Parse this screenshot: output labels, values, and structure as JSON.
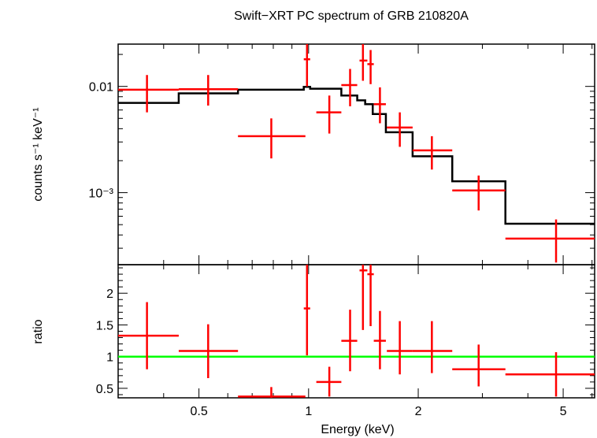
{
  "chart_data": [
    {
      "panel": "spectrum",
      "type": "scatter",
      "title": "Swift−XRT PC spectrum of GRB 210820A",
      "ylabel": "counts s⁻¹ keV⁻¹",
      "xlabel": "",
      "xscale": "log",
      "yscale": "log",
      "xlim": [
        0.3,
        6.1
      ],
      "ylim": [
        0.00021,
        0.025
      ],
      "y_tick_labels": [
        {
          "value": 0.01,
          "label": "0.01"
        },
        {
          "value": 0.001,
          "label": "10⁻³"
        }
      ],
      "colors": {
        "data": "#ff0000",
        "model": "#000000"
      },
      "data_points": [
        {
          "x": 0.36,
          "xlo": 0.3,
          "xhi": 0.44,
          "y": 0.0093,
          "ylo": 0.0057,
          "yhi": 0.0128
        },
        {
          "x": 0.53,
          "xlo": 0.44,
          "xhi": 0.64,
          "y": 0.0094,
          "ylo": 0.0066,
          "yhi": 0.0128
        },
        {
          "x": 0.79,
          "xlo": 0.64,
          "xhi": 0.98,
          "y": 0.0034,
          "ylo": 0.0021,
          "yhi": 0.005
        },
        {
          "x": 0.99,
          "xlo": 0.97,
          "xhi": 1.01,
          "y": 0.018,
          "ylo": 0.01,
          "yhi": 0.025
        },
        {
          "x": 1.14,
          "xlo": 1.05,
          "xhi": 1.23,
          "y": 0.0057,
          "ylo": 0.0036,
          "yhi": 0.0082
        },
        {
          "x": 1.3,
          "xlo": 1.23,
          "xhi": 1.36,
          "y": 0.0103,
          "ylo": 0.0065,
          "yhi": 0.0146
        },
        {
          "x": 1.41,
          "xlo": 1.38,
          "xhi": 1.45,
          "y": 0.0175,
          "ylo": 0.0113,
          "yhi": 0.025
        },
        {
          "x": 1.48,
          "xlo": 1.45,
          "xhi": 1.51,
          "y": 0.0162,
          "ylo": 0.0105,
          "yhi": 0.022
        },
        {
          "x": 1.57,
          "xlo": 1.51,
          "xhi": 1.63,
          "y": 0.0068,
          "ylo": 0.0045,
          "yhi": 0.0098
        },
        {
          "x": 1.78,
          "xlo": 1.64,
          "xhi": 1.93,
          "y": 0.0041,
          "ylo": 0.0027,
          "yhi": 0.0057
        },
        {
          "x": 2.18,
          "xlo": 1.93,
          "xhi": 2.48,
          "y": 0.0025,
          "ylo": 0.00165,
          "yhi": 0.0034
        },
        {
          "x": 2.93,
          "xlo": 2.48,
          "xhi": 3.47,
          "y": 0.00105,
          "ylo": 0.00068,
          "yhi": 0.00145
        },
        {
          "x": 4.78,
          "xlo": 3.47,
          "xhi": 6.1,
          "y": 0.00037,
          "ylo": 0.00022,
          "yhi": 0.00056
        }
      ],
      "model_steps": [
        {
          "xlo": 0.3,
          "xhi": 0.44,
          "y": 0.007
        },
        {
          "xlo": 0.44,
          "xhi": 0.64,
          "y": 0.0086
        },
        {
          "xlo": 0.64,
          "xhi": 0.97,
          "y": 0.0093
        },
        {
          "xlo": 0.97,
          "xhi": 1.01,
          "y": 0.0099
        },
        {
          "xlo": 1.01,
          "xhi": 1.23,
          "y": 0.0095
        },
        {
          "xlo": 1.23,
          "xhi": 1.36,
          "y": 0.0082
        },
        {
          "xlo": 1.36,
          "xhi": 1.43,
          "y": 0.0074
        },
        {
          "xlo": 1.43,
          "xhi": 1.5,
          "y": 0.0068
        },
        {
          "xlo": 1.5,
          "xhi": 1.63,
          "y": 0.0055
        },
        {
          "xlo": 1.63,
          "xhi": 1.93,
          "y": 0.0037
        },
        {
          "xlo": 1.93,
          "xhi": 2.48,
          "y": 0.0022
        },
        {
          "xlo": 2.48,
          "xhi": 3.47,
          "y": 0.00128
        },
        {
          "xlo": 3.47,
          "xhi": 6.1,
          "y": 0.00051
        }
      ]
    },
    {
      "panel": "ratio",
      "type": "scatter",
      "title": "",
      "ylabel": "ratio",
      "xlabel": "Energy (keV)",
      "xscale": "log",
      "yscale": "linear",
      "xlim": [
        0.3,
        6.1
      ],
      "ylim": [
        0.35,
        2.45
      ],
      "reference_line": {
        "y": 1,
        "color": "#00ff00"
      },
      "x_tick_labels": [
        {
          "value": 0.5,
          "label": "0.5"
        },
        {
          "value": 1,
          "label": "1"
        },
        {
          "value": 2,
          "label": "2"
        },
        {
          "value": 5,
          "label": "5"
        }
      ],
      "y_tick_labels": [
        {
          "value": 0.5,
          "label": "0.5"
        },
        {
          "value": 1,
          "label": "1"
        },
        {
          "value": 1.5,
          "label": "1.5"
        },
        {
          "value": 2,
          "label": "2"
        }
      ],
      "colors": {
        "data": "#ff0000",
        "reference": "#00ff00"
      },
      "data_points": [
        {
          "x": 0.36,
          "xlo": 0.3,
          "xhi": 0.44,
          "y": 1.33,
          "ylo": 0.8,
          "yhi": 1.86
        },
        {
          "x": 0.53,
          "xlo": 0.44,
          "xhi": 0.64,
          "y": 1.09,
          "ylo": 0.66,
          "yhi": 1.51
        },
        {
          "x": 0.79,
          "xlo": 0.64,
          "xhi": 0.98,
          "y": 0.37,
          "ylo": 0.35,
          "yhi": 0.52
        },
        {
          "x": 0.99,
          "xlo": 0.97,
          "xhi": 1.01,
          "y": 1.76,
          "ylo": 1.02,
          "yhi": 2.45
        },
        {
          "x": 1.14,
          "xlo": 1.05,
          "xhi": 1.23,
          "y": 0.6,
          "ylo": 0.37,
          "yhi": 0.84
        },
        {
          "x": 1.3,
          "xlo": 1.23,
          "xhi": 1.36,
          "y": 1.25,
          "ylo": 0.77,
          "yhi": 1.74
        },
        {
          "x": 1.41,
          "xlo": 1.38,
          "xhi": 1.45,
          "y": 2.36,
          "ylo": 1.42,
          "yhi": 2.45
        },
        {
          "x": 1.48,
          "xlo": 1.45,
          "xhi": 1.51,
          "y": 2.3,
          "ylo": 1.48,
          "yhi": 2.45
        },
        {
          "x": 1.57,
          "xlo": 1.51,
          "xhi": 1.63,
          "y": 1.25,
          "ylo": 0.8,
          "yhi": 1.72
        },
        {
          "x": 1.78,
          "xlo": 1.64,
          "xhi": 1.93,
          "y": 1.09,
          "ylo": 0.72,
          "yhi": 1.56
        },
        {
          "x": 2.18,
          "xlo": 1.93,
          "xhi": 2.48,
          "y": 1.09,
          "ylo": 0.74,
          "yhi": 1.56
        },
        {
          "x": 2.93,
          "xlo": 2.48,
          "xhi": 3.47,
          "y": 0.8,
          "ylo": 0.53,
          "yhi": 1.19
        },
        {
          "x": 4.78,
          "xlo": 3.47,
          "xhi": 6.1,
          "y": 0.72,
          "ylo": 0.37,
          "yhi": 1.07
        }
      ]
    }
  ]
}
